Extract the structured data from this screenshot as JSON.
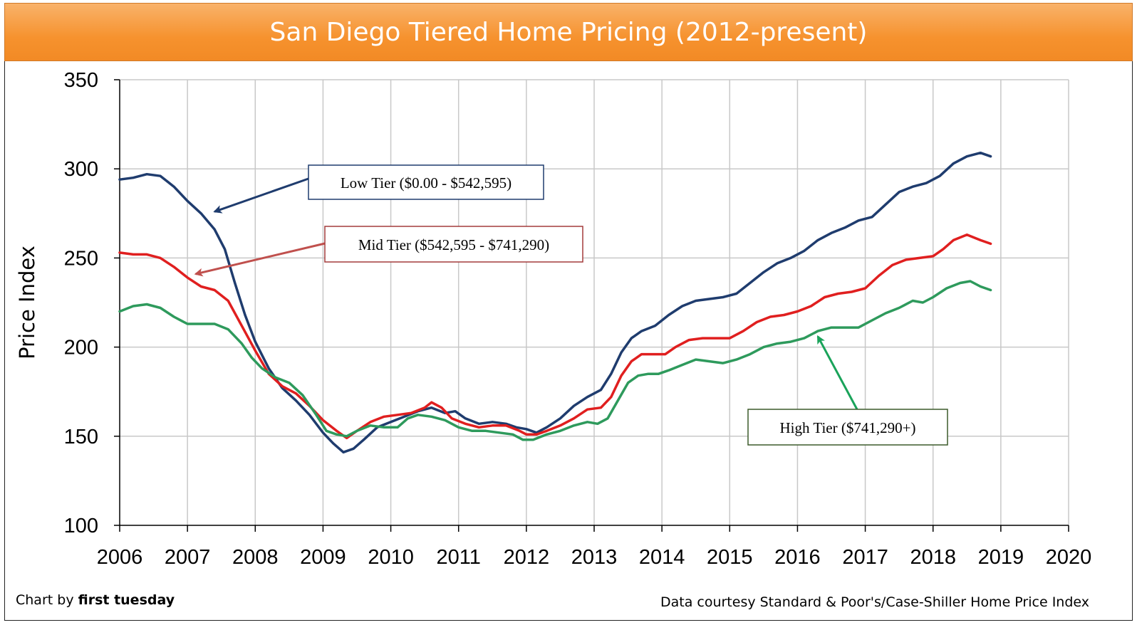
{
  "title": "San Diego Tiered Home Pricing (2012-present)",
  "footer": {
    "credit_prefix": "Chart by ",
    "credit_name": "first tuesday",
    "source": "Data courtesy Standard & Poor's/Case-Shiller Home Price Index"
  },
  "colors": {
    "low": "#1f3c6e",
    "mid": "#e01f1f",
    "high": "#2e9a5c",
    "grid": "#c8c8c8",
    "title_bg": "#f6922e"
  },
  "chart_data": {
    "type": "line",
    "title": "San Diego Tiered Home Pricing (2012-present)",
    "xlabel": "",
    "ylabel": "Price Index",
    "xlim": [
      2006,
      2020
    ],
    "ylim": [
      100,
      350
    ],
    "x_ticks": [
      "2006",
      "2007",
      "2008",
      "2009",
      "2010",
      "2011",
      "2012",
      "2013",
      "2014",
      "2015",
      "2016",
      "2017",
      "2018",
      "2019",
      "2020"
    ],
    "y_ticks": [
      "100",
      "150",
      "200",
      "250",
      "300",
      "350"
    ],
    "grid": true,
    "series": [
      {
        "name": "Low Tier ($0.00 - $542,595)",
        "color_key": "low",
        "points": [
          [
            2006.0,
            294
          ],
          [
            2006.2,
            295
          ],
          [
            2006.4,
            297
          ],
          [
            2006.6,
            296
          ],
          [
            2006.8,
            290
          ],
          [
            2007.0,
            282
          ],
          [
            2007.2,
            275
          ],
          [
            2007.4,
            266
          ],
          [
            2007.55,
            255
          ],
          [
            2007.7,
            236
          ],
          [
            2007.85,
            218
          ],
          [
            2008.0,
            203
          ],
          [
            2008.2,
            188
          ],
          [
            2008.4,
            177
          ],
          [
            2008.6,
            170
          ],
          [
            2008.8,
            162
          ],
          [
            2009.0,
            152
          ],
          [
            2009.15,
            146
          ],
          [
            2009.3,
            141
          ],
          [
            2009.45,
            143
          ],
          [
            2009.6,
            148
          ],
          [
            2009.8,
            155
          ],
          [
            2010.0,
            158
          ],
          [
            2010.2,
            161
          ],
          [
            2010.4,
            164
          ],
          [
            2010.6,
            166
          ],
          [
            2010.8,
            163
          ],
          [
            2010.95,
            164
          ],
          [
            2011.1,
            160
          ],
          [
            2011.3,
            157
          ],
          [
            2011.5,
            158
          ],
          [
            2011.7,
            157
          ],
          [
            2011.85,
            155
          ],
          [
            2012.0,
            154
          ],
          [
            2012.15,
            152
          ],
          [
            2012.3,
            155
          ],
          [
            2012.5,
            160
          ],
          [
            2012.7,
            167
          ],
          [
            2012.9,
            172
          ],
          [
            2013.1,
            176
          ],
          [
            2013.25,
            185
          ],
          [
            2013.4,
            197
          ],
          [
            2013.55,
            205
          ],
          [
            2013.7,
            209
          ],
          [
            2013.9,
            212
          ],
          [
            2014.1,
            218
          ],
          [
            2014.3,
            223
          ],
          [
            2014.5,
            226
          ],
          [
            2014.7,
            227
          ],
          [
            2014.9,
            228
          ],
          [
            2015.1,
            230
          ],
          [
            2015.3,
            236
          ],
          [
            2015.5,
            242
          ],
          [
            2015.7,
            247
          ],
          [
            2015.9,
            250
          ],
          [
            2016.1,
            254
          ],
          [
            2016.3,
            260
          ],
          [
            2016.5,
            264
          ],
          [
            2016.7,
            267
          ],
          [
            2016.9,
            271
          ],
          [
            2017.1,
            273
          ],
          [
            2017.3,
            280
          ],
          [
            2017.5,
            287
          ],
          [
            2017.7,
            290
          ],
          [
            2017.9,
            292
          ],
          [
            2018.1,
            296
          ],
          [
            2018.3,
            303
          ],
          [
            2018.5,
            307
          ],
          [
            2018.7,
            309
          ],
          [
            2018.85,
            307
          ]
        ]
      },
      {
        "name": "Mid Tier ($542,595 - $741,290)",
        "color_key": "mid",
        "points": [
          [
            2006.0,
            253
          ],
          [
            2006.2,
            252
          ],
          [
            2006.4,
            252
          ],
          [
            2006.6,
            250
          ],
          [
            2006.8,
            245
          ],
          [
            2007.0,
            239
          ],
          [
            2007.2,
            234
          ],
          [
            2007.4,
            232
          ],
          [
            2007.6,
            226
          ],
          [
            2007.8,
            212
          ],
          [
            2008.0,
            198
          ],
          [
            2008.2,
            185
          ],
          [
            2008.4,
            178
          ],
          [
            2008.6,
            174
          ],
          [
            2008.8,
            167
          ],
          [
            2009.0,
            159
          ],
          [
            2009.2,
            153
          ],
          [
            2009.35,
            149
          ],
          [
            2009.5,
            153
          ],
          [
            2009.7,
            158
          ],
          [
            2009.9,
            161
          ],
          [
            2010.1,
            162
          ],
          [
            2010.3,
            163
          ],
          [
            2010.5,
            166
          ],
          [
            2010.6,
            169
          ],
          [
            2010.75,
            166
          ],
          [
            2010.9,
            160
          ],
          [
            2011.1,
            157
          ],
          [
            2011.3,
            155
          ],
          [
            2011.5,
            156
          ],
          [
            2011.7,
            156
          ],
          [
            2011.9,
            153
          ],
          [
            2012.0,
            151
          ],
          [
            2012.15,
            151
          ],
          [
            2012.3,
            153
          ],
          [
            2012.5,
            156
          ],
          [
            2012.7,
            160
          ],
          [
            2012.9,
            165
          ],
          [
            2013.1,
            166
          ],
          [
            2013.25,
            172
          ],
          [
            2013.4,
            184
          ],
          [
            2013.55,
            192
          ],
          [
            2013.7,
            196
          ],
          [
            2013.9,
            196
          ],
          [
            2014.05,
            196
          ],
          [
            2014.2,
            200
          ],
          [
            2014.4,
            204
          ],
          [
            2014.6,
            205
          ],
          [
            2014.8,
            205
          ],
          [
            2015.0,
            205
          ],
          [
            2015.2,
            209
          ],
          [
            2015.4,
            214
          ],
          [
            2015.6,
            217
          ],
          [
            2015.8,
            218
          ],
          [
            2016.0,
            220
          ],
          [
            2016.2,
            223
          ],
          [
            2016.4,
            228
          ],
          [
            2016.6,
            230
          ],
          [
            2016.8,
            231
          ],
          [
            2017.0,
            233
          ],
          [
            2017.2,
            240
          ],
          [
            2017.4,
            246
          ],
          [
            2017.6,
            249
          ],
          [
            2017.8,
            250
          ],
          [
            2018.0,
            251
          ],
          [
            2018.15,
            255
          ],
          [
            2018.3,
            260
          ],
          [
            2018.5,
            263
          ],
          [
            2018.7,
            260
          ],
          [
            2018.85,
            258
          ]
        ]
      },
      {
        "name": "High Tier ($741,290+)",
        "color_key": "high",
        "points": [
          [
            2006.0,
            220
          ],
          [
            2006.2,
            223
          ],
          [
            2006.4,
            224
          ],
          [
            2006.6,
            222
          ],
          [
            2006.8,
            217
          ],
          [
            2007.0,
            213
          ],
          [
            2007.2,
            213
          ],
          [
            2007.4,
            213
          ],
          [
            2007.6,
            210
          ],
          [
            2007.8,
            202
          ],
          [
            2007.95,
            194
          ],
          [
            2008.1,
            188
          ],
          [
            2008.3,
            183
          ],
          [
            2008.5,
            180
          ],
          [
            2008.7,
            173
          ],
          [
            2008.9,
            162
          ],
          [
            2009.05,
            153
          ],
          [
            2009.2,
            151
          ],
          [
            2009.35,
            150
          ],
          [
            2009.5,
            153
          ],
          [
            2009.7,
            156
          ],
          [
            2009.9,
            155
          ],
          [
            2010.1,
            155
          ],
          [
            2010.25,
            160
          ],
          [
            2010.4,
            162
          ],
          [
            2010.6,
            161
          ],
          [
            2010.8,
            159
          ],
          [
            2011.0,
            155
          ],
          [
            2011.2,
            153
          ],
          [
            2011.4,
            153
          ],
          [
            2011.6,
            152
          ],
          [
            2011.8,
            151
          ],
          [
            2011.95,
            148
          ],
          [
            2012.1,
            148
          ],
          [
            2012.3,
            151
          ],
          [
            2012.5,
            153
          ],
          [
            2012.7,
            156
          ],
          [
            2012.9,
            158
          ],
          [
            2013.05,
            157
          ],
          [
            2013.2,
            160
          ],
          [
            2013.35,
            170
          ],
          [
            2013.5,
            180
          ],
          [
            2013.65,
            184
          ],
          [
            2013.8,
            185
          ],
          [
            2013.95,
            185
          ],
          [
            2014.1,
            187
          ],
          [
            2014.3,
            190
          ],
          [
            2014.5,
            193
          ],
          [
            2014.7,
            192
          ],
          [
            2014.9,
            191
          ],
          [
            2015.1,
            193
          ],
          [
            2015.3,
            196
          ],
          [
            2015.5,
            200
          ],
          [
            2015.7,
            202
          ],
          [
            2015.9,
            203
          ],
          [
            2016.1,
            205
          ],
          [
            2016.3,
            209
          ],
          [
            2016.5,
            211
          ],
          [
            2016.7,
            211
          ],
          [
            2016.9,
            211
          ],
          [
            2017.1,
            215
          ],
          [
            2017.3,
            219
          ],
          [
            2017.5,
            222
          ],
          [
            2017.7,
            226
          ],
          [
            2017.85,
            225
          ],
          [
            2018.0,
            228
          ],
          [
            2018.2,
            233
          ],
          [
            2018.4,
            236
          ],
          [
            2018.55,
            237
          ],
          [
            2018.7,
            234
          ],
          [
            2018.85,
            232
          ]
        ]
      }
    ],
    "annotations": [
      {
        "text": "Low Tier ($0.00 - $542,595)",
        "series": "low",
        "arrow_to": [
          2007.4,
          276
        ]
      },
      {
        "text": "Mid Tier ($542,595 - $741,290)",
        "series": "mid",
        "arrow_to": [
          2007.12,
          241
        ]
      },
      {
        "text": "High Tier ($741,290+)",
        "series": "high",
        "arrow_to": [
          2016.3,
          206
        ]
      }
    ]
  }
}
